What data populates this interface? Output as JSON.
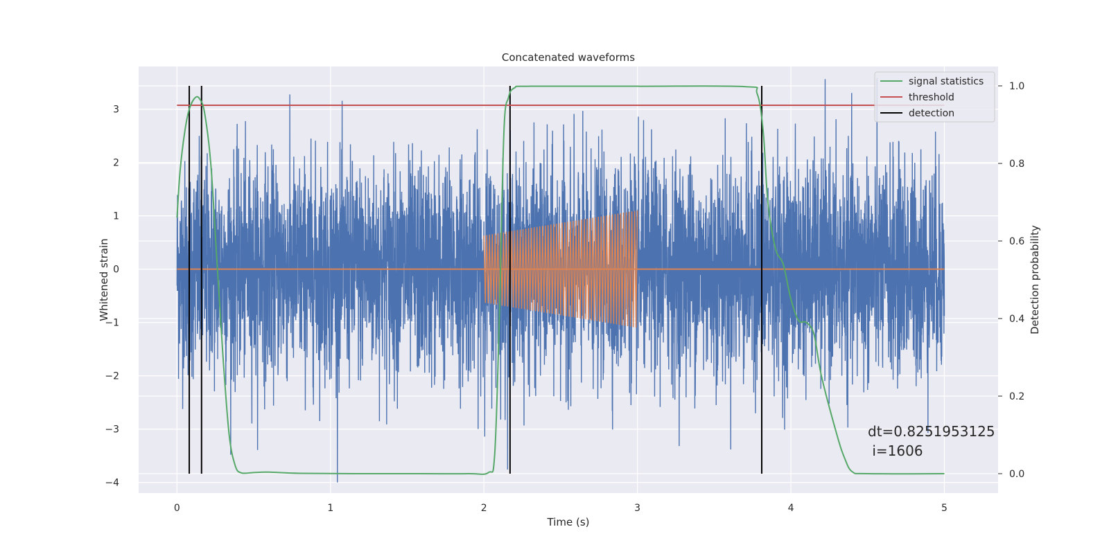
{
  "chart_data": {
    "type": "line",
    "title": "Concatenated waveforms",
    "xlabel": "Time (s)",
    "ylabel": "Whitened strain",
    "ylabel_right": "Detection probability",
    "xlim": [
      -0.25,
      5.35
    ],
    "ylim": [
      -4.2,
      3.8
    ],
    "ylim_right": [
      -0.05,
      1.05
    ],
    "xticks": [
      0,
      1,
      2,
      3,
      4,
      5
    ],
    "yticks": [
      -4,
      -3,
      -2,
      -1,
      0,
      1,
      2,
      3
    ],
    "yticks_right": [
      0.0,
      0.2,
      0.4,
      0.6,
      0.8,
      1.0
    ],
    "grid": true,
    "legend_position": "top-right",
    "annotation": {
      "line1": "dt=0.8251953125",
      "line2": " i=1606",
      "x": 4.5,
      "y": -3.3
    },
    "noise": {
      "name": "",
      "color": "#4c72b0",
      "x_start": 0.0,
      "x_end": 5.0,
      "std": 1.0,
      "max_abs": 4.0
    },
    "injected_signal": {
      "name": "",
      "color": "#dd8452",
      "x_start": 2.0,
      "x_end": 3.0,
      "amp_start": 0.63,
      "amp_end": 1.1,
      "cycles": 55
    },
    "series": [
      {
        "name": "signal statistics",
        "color": "#55a868",
        "axis": "right",
        "x": [
          0.0,
          0.02,
          0.05,
          0.08,
          0.12,
          0.15,
          0.18,
          0.22,
          0.26,
          0.3,
          0.34,
          0.38,
          0.42,
          0.5,
          0.6,
          0.8,
          1.2,
          1.6,
          1.9,
          2.03,
          2.07,
          2.1,
          2.13,
          2.16,
          2.2,
          2.3,
          3.0,
          3.7,
          3.78,
          3.82,
          3.85,
          3.9,
          3.95,
          4.0,
          4.05,
          4.1,
          4.15,
          4.2,
          4.3,
          4.35,
          4.4,
          4.5,
          5.0
        ],
        "y": [
          0.66,
          0.78,
          0.88,
          0.94,
          0.97,
          0.965,
          0.93,
          0.8,
          0.55,
          0.3,
          0.1,
          0.02,
          0.002,
          0.003,
          0.004,
          0.001,
          0.0,
          0.0,
          0.0,
          0.003,
          0.05,
          0.4,
          0.88,
          0.97,
          0.995,
          0.999,
          0.999,
          0.998,
          0.98,
          0.88,
          0.7,
          0.58,
          0.54,
          0.45,
          0.395,
          0.39,
          0.36,
          0.25,
          0.1,
          0.04,
          0.005,
          0.0,
          0.0
        ]
      },
      {
        "name": "threshold",
        "color": "#c44e52",
        "axis": "right",
        "x": [
          0.0,
          5.0
        ],
        "y": [
          0.95,
          0.95
        ]
      },
      {
        "name": "detection",
        "color": "#000000",
        "axis": "right",
        "vlines": [
          0.08,
          0.16,
          2.17,
          3.81
        ],
        "y_range": [
          0.0,
          1.0
        ]
      }
    ]
  }
}
